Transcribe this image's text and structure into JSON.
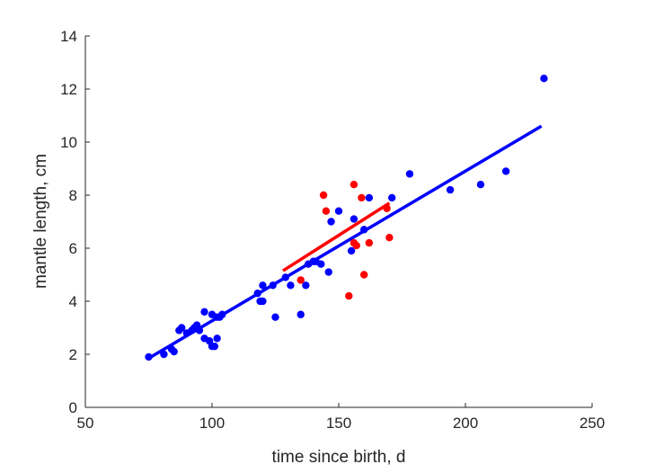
{
  "chart_data": {
    "type": "scatter",
    "title": "",
    "xlabel": "time since birth, d",
    "ylabel": "mantle length, cm",
    "xlim": [
      50,
      250
    ],
    "ylim": [
      0,
      14
    ],
    "xticks": [
      50,
      100,
      150,
      200,
      250
    ],
    "yticks": [
      0,
      2,
      4,
      6,
      8,
      10,
      12,
      14
    ],
    "grid": false,
    "legend": "none",
    "series": [
      {
        "color": "#0000ff",
        "marker": "filled-circle",
        "points": [
          [
            75,
            1.9
          ],
          [
            81,
            2.0
          ],
          [
            84,
            2.2
          ],
          [
            85,
            2.1
          ],
          [
            87,
            2.9
          ],
          [
            88,
            3.0
          ],
          [
            90,
            2.8
          ],
          [
            92,
            2.9
          ],
          [
            93,
            3.0
          ],
          [
            94,
            3.1
          ],
          [
            95,
            2.9
          ],
          [
            97,
            3.6
          ],
          [
            97,
            2.6
          ],
          [
            99,
            2.5
          ],
          [
            100,
            3.5
          ],
          [
            100,
            2.3
          ],
          [
            101,
            2.3
          ],
          [
            102,
            3.4
          ],
          [
            102,
            2.6
          ],
          [
            103,
            3.4
          ],
          [
            104,
            3.5
          ],
          [
            118,
            4.3
          ],
          [
            119,
            4.0
          ],
          [
            120,
            4.0
          ],
          [
            120,
            4.6
          ],
          [
            124,
            4.6
          ],
          [
            125,
            3.4
          ],
          [
            129,
            4.9
          ],
          [
            131,
            4.6
          ],
          [
            135,
            3.5
          ],
          [
            137,
            4.6
          ],
          [
            138,
            5.4
          ],
          [
            140,
            5.5
          ],
          [
            141,
            5.5
          ],
          [
            143,
            5.4
          ],
          [
            146,
            5.1
          ],
          [
            147,
            7.0
          ],
          [
            150,
            7.4
          ],
          [
            155,
            5.9
          ],
          [
            156,
            7.1
          ],
          [
            160,
            6.7
          ],
          [
            162,
            7.9
          ],
          [
            171,
            7.9
          ],
          [
            178,
            8.8
          ],
          [
            194,
            8.2
          ],
          [
            206,
            8.4
          ],
          [
            216,
            8.9
          ],
          [
            231,
            12.4
          ]
        ],
        "fit_line": [
          [
            75,
            1.85
          ],
          [
            230,
            10.6
          ]
        ]
      },
      {
        "color": "#ff0000",
        "marker": "filled-circle",
        "points": [
          [
            135,
            4.8
          ],
          [
            144,
            8.0
          ],
          [
            145,
            7.4
          ],
          [
            154,
            4.2
          ],
          [
            156,
            8.4
          ],
          [
            156,
            6.2
          ],
          [
            157,
            6.1
          ],
          [
            159,
            7.9
          ],
          [
            160,
            5.0
          ],
          [
            162,
            6.2
          ],
          [
            169,
            7.5
          ],
          [
            170,
            6.4
          ]
        ],
        "fit_line": [
          [
            128,
            5.15
          ],
          [
            170,
            7.7
          ]
        ]
      }
    ]
  }
}
